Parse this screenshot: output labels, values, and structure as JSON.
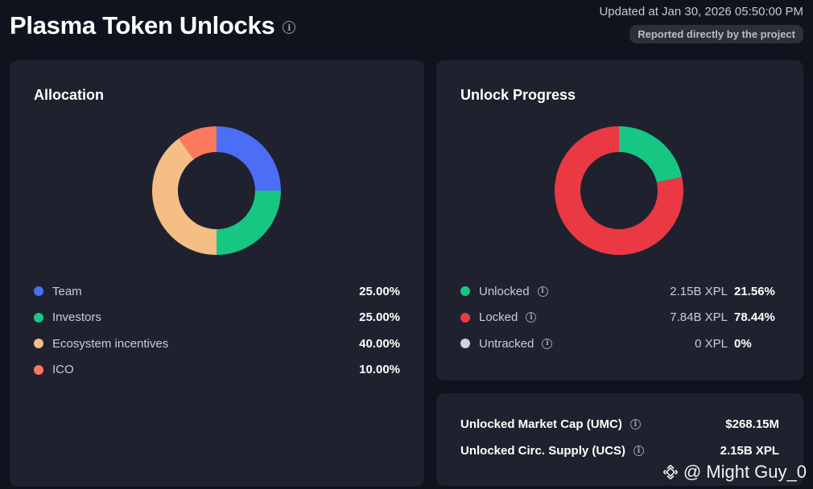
{
  "header": {
    "title": "Plasma Token Unlocks",
    "updated": "Updated at Jan 30, 2026 05:50:00 PM",
    "badge": "Reported directly by the project"
  },
  "allocation": {
    "title": "Allocation",
    "items": [
      {
        "label": "Team",
        "percent": "25.00%",
        "value": 25,
        "color": "#4b6ef5"
      },
      {
        "label": "Investors",
        "percent": "25.00%",
        "value": 25,
        "color": "#16c784"
      },
      {
        "label": "Ecosystem incentives",
        "percent": "40.00%",
        "value": 40,
        "color": "#f5be85"
      },
      {
        "label": "ICO",
        "percent": "10.00%",
        "value": 10,
        "color": "#fb7a5f"
      }
    ]
  },
  "unlock_progress": {
    "title": "Unlock Progress",
    "items": [
      {
        "label": "Unlocked",
        "amount": "2.15B XPL",
        "percent": "21.56%",
        "value": 21.56,
        "color": "#16c784"
      },
      {
        "label": "Locked",
        "amount": "7.84B XPL",
        "percent": "78.44%",
        "value": 78.44,
        "color": "#ea3943"
      },
      {
        "label": "Untracked",
        "amount": "0 XPL",
        "percent": "0%",
        "value": 0,
        "color": "#cfd3dc"
      }
    ]
  },
  "summary": {
    "umc_label": "Unlocked Market Cap (UMC)",
    "umc_value": "$268.15M",
    "ucs_label": "Unlocked Circ. Supply (UCS)",
    "ucs_value": "2.15B XPL"
  },
  "watermark": "@ Might Guy_0",
  "icons": {
    "info": "info-circle-icon",
    "watermark_logo": "binance-logo-icon"
  }
}
